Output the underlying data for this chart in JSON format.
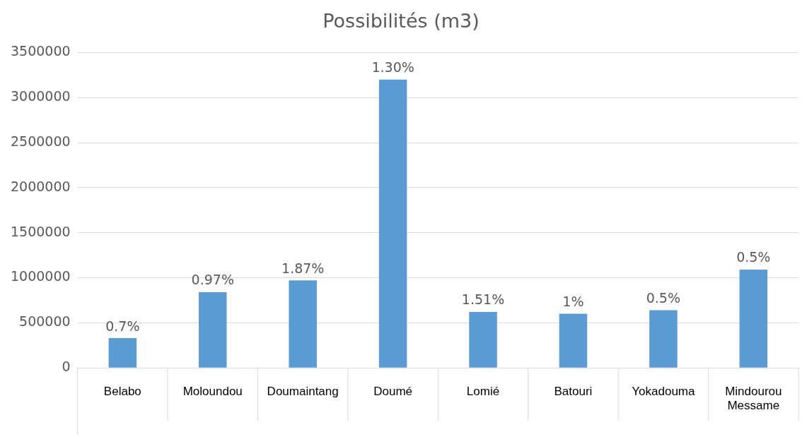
{
  "chart_data": {
    "type": "bar",
    "title": "Possibilités (m3)",
    "categories": [
      "Belabo",
      "Moloundou",
      "Doumaintang",
      "Doumé",
      "Lomié",
      "Batouri",
      "Yokadouma",
      "Mindourou Messame"
    ],
    "values": [
      330000,
      840000,
      970000,
      3200000,
      620000,
      600000,
      640000,
      1090000
    ],
    "annotations": [
      {
        "text": "0.7%",
        "x": "Belabo",
        "y": 330000
      },
      {
        "text": "0.97%",
        "x": "Moloundou",
        "y": 840000
      },
      {
        "text": "1.87%",
        "x": "Doumaintang",
        "y": 970000
      },
      {
        "text": "1.30%",
        "x": "Doumé",
        "y": 3200000
      },
      {
        "text": "1.51%",
        "x": "Lomié",
        "y": 620000
      },
      {
        "text": "1%",
        "x": "Batouri",
        "y": 600000
      },
      {
        "text": "0.5%",
        "x": "Yokadouma",
        "y": 640000
      },
      {
        "text": "0.5%",
        "x": "Mindourou Messame",
        "y": 1090000
      }
    ],
    "color": "#5b9bd5",
    "ylim": [
      0,
      3500000
    ],
    "yticks": [
      0,
      500000,
      1000000,
      1500000,
      2000000,
      2500000,
      3000000,
      3500000
    ],
    "grid": "y",
    "legend": false
  }
}
